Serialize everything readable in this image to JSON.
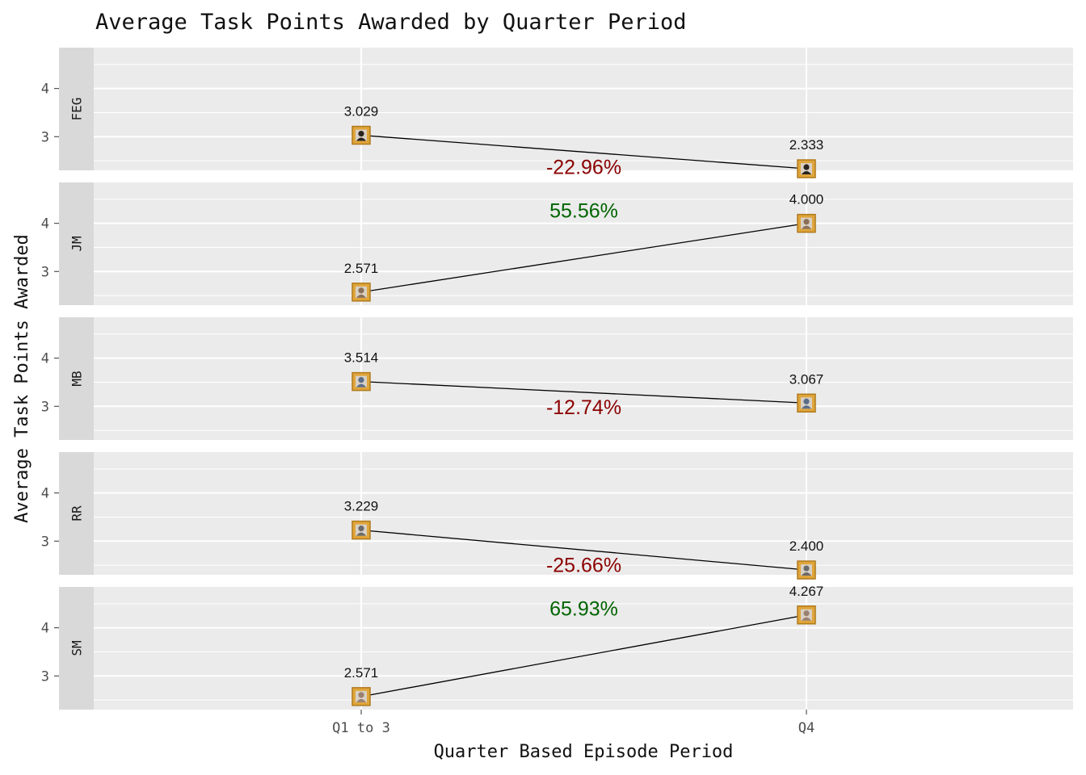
{
  "chart_data": {
    "type": "line",
    "title": "Average Task Points Awarded by Quarter Period",
    "xlabel": "Quarter Based Episode Period",
    "ylabel": "Average Task Points Awarded",
    "categories": [
      "Q1 to 3",
      "Q4"
    ],
    "y_ticks": [
      "3",
      "4"
    ],
    "ylim": [
      2.3,
      4.85
    ],
    "grid": true,
    "facet_layout": "vertical-stacked",
    "colors": {
      "panel_background": "#ebebeb",
      "strip_background": "#d9d9d9",
      "gridline": "#ffffff",
      "line": "#000000",
      "marker_frame": "#e0a53a",
      "increase": "#006400",
      "decrease": "#8b0000"
    },
    "series": [
      {
        "name": "FEG",
        "values": [
          3.029,
          2.333
        ],
        "value_labels": [
          "3.029",
          "2.333"
        ],
        "change_label": "-22.96%",
        "direction": "decrease",
        "marker_fill": "#2a2420"
      },
      {
        "name": "JM",
        "values": [
          2.571,
          4.0
        ],
        "value_labels": [
          "2.571",
          "4.000"
        ],
        "change_label": "55.56%",
        "direction": "increase",
        "marker_fill": "#8a7058"
      },
      {
        "name": "MB",
        "values": [
          3.514,
          3.067
        ],
        "value_labels": [
          "3.514",
          "3.067"
        ],
        "change_label": "-12.74%",
        "direction": "decrease",
        "marker_fill": "#5a6e8a"
      },
      {
        "name": "RR",
        "values": [
          3.229,
          2.4
        ],
        "value_labels": [
          "3.229",
          "2.400"
        ],
        "change_label": "-25.66%",
        "direction": "decrease",
        "marker_fill": "#6a6a6a"
      },
      {
        "name": "SM",
        "values": [
          2.571,
          4.267
        ],
        "value_labels": [
          "2.571",
          "4.267"
        ],
        "change_label": "65.93%",
        "direction": "increase",
        "marker_fill": "#9a8070"
      }
    ]
  }
}
